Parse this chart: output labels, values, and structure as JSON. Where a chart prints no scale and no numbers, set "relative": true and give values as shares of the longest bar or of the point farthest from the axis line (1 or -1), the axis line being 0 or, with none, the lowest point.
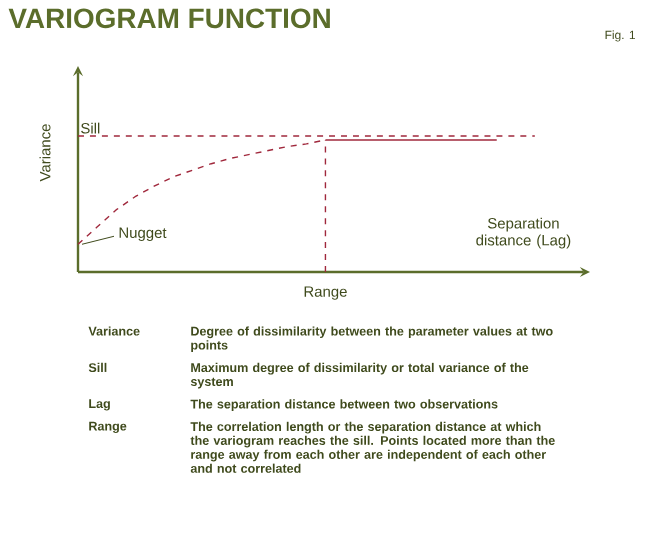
{
  "chart_data": {
    "type": "line",
    "title": "VARIOGRAM FUNCTION",
    "xlabel": "Separation distance (Lag)",
    "ylabel": "Variance",
    "relative": true,
    "marker": "none",
    "categories": [
      null,
      null,
      null,
      null,
      null,
      null,
      null,
      null,
      null,
      null,
      null,
      null,
      null,
      null,
      null,
      null,
      null,
      null,
      null,
      null,
      null,
      null,
      null,
      null,
      null
    ],
    "series": [
      {
        "color": "#a0283c",
        "line_style": "dashed",
        "values": [
          0.21,
          0.34,
          0.47,
          0.57,
          0.65,
          0.72,
          0.77,
          0.82,
          0.86,
          0.89,
          0.92,
          0.95,
          0.97,
          1,
          null,
          null,
          null,
          null,
          null,
          null,
          null,
          null,
          null,
          null,
          null
        ]
      },
      {
        "color": "#a0283c",
        "line_style": "solid",
        "values": [
          null,
          null,
          null,
          null,
          null,
          null,
          null,
          null,
          null,
          null,
          null,
          null,
          null,
          1,
          1,
          1,
          1,
          1,
          1,
          1,
          1,
          1,
          1,
          null,
          null
        ]
      }
    ],
    "ref_lines": [
      {
        "axis": "y",
        "value": 1.03,
        "label": "Sill",
        "color": "#a0283c",
        "line_style": "dashed"
      }
    ],
    "annotations": [
      "Fig. 1",
      "Nugget",
      "Range",
      "Variance",
      "Degree of dissimilarity between the parameter values at two points",
      "Sill",
      "Maximum degree of dissimilarity or total variance of the system",
      "Lag",
      "The separation distance between two observations",
      "Range",
      "The correlation length or the separation distance at which the variogram reaches the sill. Points located more than the range away from each other are independent of each other and not correlated"
    ]
  }
}
